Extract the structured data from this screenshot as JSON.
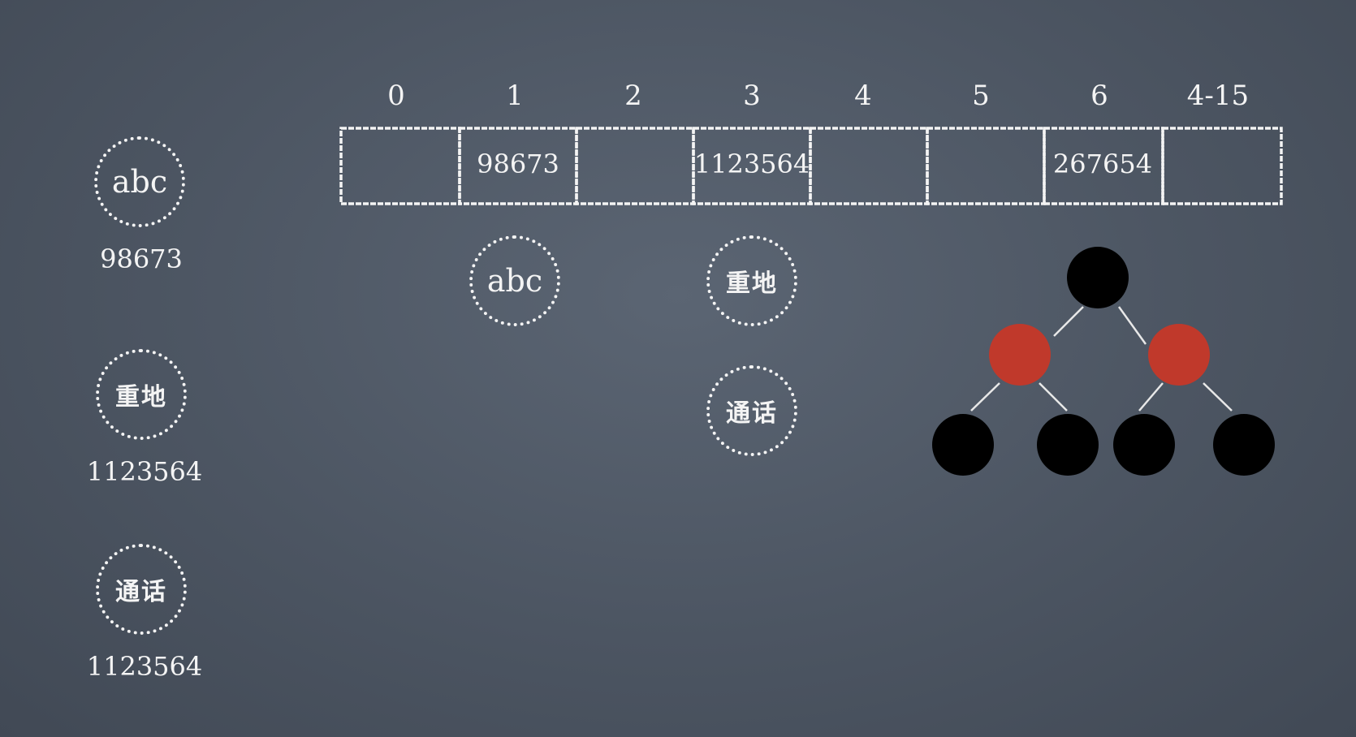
{
  "slots": [
    {
      "index": "0",
      "value": ""
    },
    {
      "index": "1",
      "value": "98673"
    },
    {
      "index": "2",
      "value": ""
    },
    {
      "index": "3",
      "value": "1123564"
    },
    {
      "index": "4",
      "value": ""
    },
    {
      "index": "5",
      "value": ""
    },
    {
      "index": "6",
      "value": "267654"
    },
    {
      "index": "4-15",
      "value": ""
    }
  ],
  "keys": [
    {
      "label": "abc",
      "hash": "98673"
    },
    {
      "label": "重地",
      "hash": "1123564"
    },
    {
      "label": "通话",
      "hash": "1123564"
    }
  ],
  "bucket_nodes": [
    {
      "label": "abc",
      "slot": 1
    },
    {
      "label": "重地",
      "slot": 3
    },
    {
      "label": "通话",
      "slot": 3
    }
  ],
  "tree": {
    "nodes": [
      {
        "id": "root",
        "color": "black",
        "parent": null
      },
      {
        "id": "l",
        "color": "red",
        "parent": "root"
      },
      {
        "id": "r",
        "color": "red",
        "parent": "root"
      },
      {
        "id": "ll",
        "color": "black",
        "parent": "l"
      },
      {
        "id": "lr",
        "color": "black",
        "parent": "l"
      },
      {
        "id": "rl",
        "color": "black",
        "parent": "r"
      },
      {
        "id": "rr",
        "color": "black",
        "parent": "r"
      }
    ],
    "colors": {
      "black": "#000000",
      "red": "#c0392b",
      "edge": "#e8e8e8"
    }
  },
  "colors": {
    "chalk": "#f4f4f4",
    "board": "#4c5562"
  }
}
